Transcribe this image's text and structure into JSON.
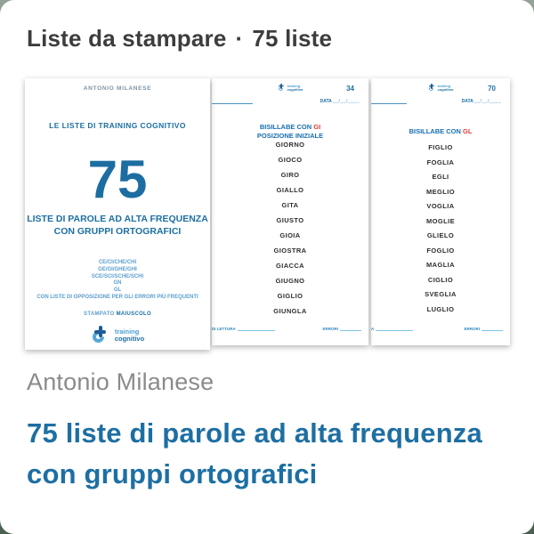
{
  "header": {
    "category": "Liste da stampare",
    "separator": "·",
    "count": "75 liste"
  },
  "cover": {
    "author": "ANTONIO MILANESE",
    "series": "LE LISTE DI TRAINING COGNITIVO",
    "big_number": "75",
    "title_line1": "LISTE DI PAROLE AD ALTA FREQUENZA",
    "title_line2": "CON GRUPPI ORTOGRAFICI",
    "groups": [
      "CE/CI/CHE/CHI",
      "GE/GI/GHE/GHI",
      "SCE/SCI/SCHE/SCHI",
      "GN",
      "GL",
      "CON LISTE DI OPPOSIZIONE PER GLI ERRORI PIÙ FREQUENTI"
    ],
    "print_style_label": "STAMPATO",
    "print_style_value": "MAIUSCOLO",
    "logo": {
      "line1": "training",
      "line2": "cognitivo"
    }
  },
  "pages": [
    {
      "page_number": "34",
      "date_label": "DATA",
      "date_blanks": "__/__/____",
      "heading_prefix": "BISILLABE CON",
      "heading_highlight": "GI",
      "heading_line2": "POSIZIONE INIZIALE",
      "words": [
        "GIORNO",
        "GIOCO",
        "GIRO",
        "GIALLO",
        "GITA",
        "GIUSTO",
        "GIOIA",
        "GIOSTRA",
        "GIACCA",
        "GIUGNO",
        "GIGLIO",
        "GIUNGLA"
      ],
      "footer_left": "DI LETTURA",
      "footer_right": "ERRORI"
    },
    {
      "page_number": "70",
      "date_label": "DATA",
      "date_blanks": "__/__/____",
      "heading_prefix": "BISILLABE CON",
      "heading_highlight": "GL",
      "heading_line2": "",
      "words": [
        "FIGLIO",
        "FOGLIA",
        "EGLI",
        "MEGLIO",
        "VOGLIA",
        "MOGLIE",
        "GLIELO",
        "FOGLIO",
        "MAGLIA",
        "CIGLIO",
        "SVEGLIA",
        "LUGLIO"
      ],
      "footer_left": "A",
      "footer_right": "ERRORI"
    }
  ],
  "footer": {
    "author": "Antonio Milanese",
    "title_line1": "75 liste di parole ad alta frequenza",
    "title_line2": "con gruppi ortografici"
  },
  "colors": {
    "brand_blue": "#1d6fa3",
    "light_blue": "#56a7d8",
    "accent_red": "#e23b3b",
    "word_color": "#2e2e2e",
    "header_gray": "#3d3d3d",
    "author_gray": "#8b8b8b",
    "card_bg": "#ffffff",
    "outside_bg": "#4a6151"
  }
}
